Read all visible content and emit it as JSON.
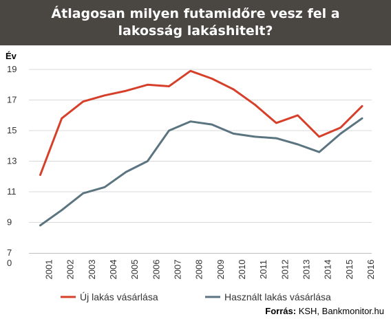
{
  "title": "Átlagosan milyen futamidőre vesz fel a lakosság lakáshitelt?",
  "source_label": "Forrás:",
  "source_text": "KSH, Bankmonitor.hu",
  "colors": {
    "title_bg": "#4a4642",
    "series_new": "#d6402a",
    "series_used": "#5a7480",
    "grid": "#d9d9d9"
  },
  "chart_data": {
    "type": "line",
    "ylabel": "Év",
    "ylim": [
      7,
      19
    ],
    "yticks": [
      "19",
      "17",
      "15",
      "13",
      "11",
      "9",
      "7"
    ],
    "y_extra_label": "0",
    "x": [
      "2001",
      "2002",
      "2003",
      "2004",
      "2005",
      "2006",
      "2007",
      "2008",
      "2009",
      "2010",
      "2011",
      "2012",
      "2013",
      "2014",
      "2015",
      "2016"
    ],
    "series": [
      {
        "name": "Új lakás vásárlása",
        "color": "#d6402a",
        "values": [
          12.1,
          15.8,
          16.9,
          17.3,
          17.6,
          18.0,
          17.9,
          18.9,
          18.4,
          17.7,
          16.7,
          15.5,
          16.0,
          14.6,
          15.2,
          16.6
        ]
      },
      {
        "name": "Használt lakás vásárlása",
        "color": "#5a7480",
        "values": [
          8.8,
          9.8,
          10.9,
          11.3,
          12.3,
          13.0,
          15.0,
          15.6,
          15.4,
          14.8,
          14.6,
          14.5,
          14.1,
          13.6,
          14.8,
          15.8
        ]
      }
    ],
    "grid": true,
    "legend": "bottom"
  }
}
